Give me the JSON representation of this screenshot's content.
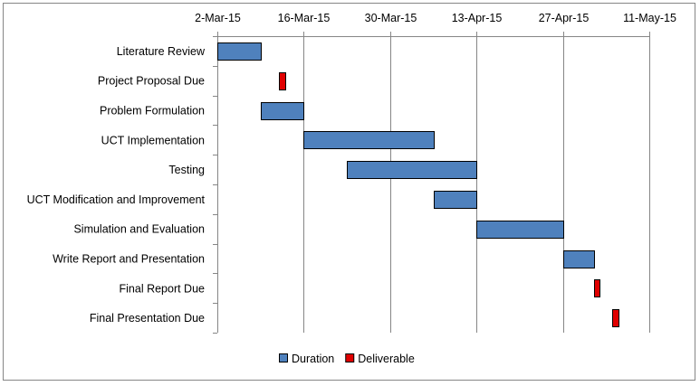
{
  "chart_data": {
    "type": "bar",
    "orientation": "horizontal",
    "title": "",
    "x_axis_position": "top",
    "grid": true,
    "xlim": [
      "2015-03-02",
      "2015-05-11"
    ],
    "x_ticks": [
      {
        "date": "2015-03-02",
        "label": "2-Mar-15"
      },
      {
        "date": "2015-03-16",
        "label": "16-Mar-15"
      },
      {
        "date": "2015-03-30",
        "label": "30-Mar-15"
      },
      {
        "date": "2015-04-13",
        "label": "13-Apr-15"
      },
      {
        "date": "2015-04-27",
        "label": "27-Apr-15"
      },
      {
        "date": "2015-05-11",
        "label": "11-May-15"
      }
    ],
    "categories": [
      "Literature Review",
      "Project Proposal Due",
      "Problem Formulation",
      "UCT Implementation",
      "Testing",
      "UCT Modification and Improvement",
      "Simulation and Evaluation",
      "Write Report and Presentation",
      "Final Report Due",
      "Final Presentation Due"
    ],
    "tasks": [
      {
        "name": "Literature Review",
        "start": "2015-03-02",
        "end": "2015-03-09",
        "series": "Duration"
      },
      {
        "name": "Project Proposal Due",
        "start": "2015-03-12",
        "end": "2015-03-13",
        "series": "Deliverable"
      },
      {
        "name": "Problem Formulation",
        "start": "2015-03-09",
        "end": "2015-03-16",
        "series": "Duration"
      },
      {
        "name": "UCT Implementation",
        "start": "2015-03-16",
        "end": "2015-04-06",
        "series": "Duration"
      },
      {
        "name": "Testing",
        "start": "2015-03-23",
        "end": "2015-04-13",
        "series": "Duration"
      },
      {
        "name": "UCT Modification and Improvement",
        "start": "2015-04-06",
        "end": "2015-04-13",
        "series": "Duration"
      },
      {
        "name": "Simulation and Evaluation",
        "start": "2015-04-13",
        "end": "2015-04-27",
        "series": "Duration"
      },
      {
        "name": "Write Report and Presentation",
        "start": "2015-04-27",
        "end": "2015-05-02",
        "series": "Duration"
      },
      {
        "name": "Final Report Due",
        "start": "2015-05-02",
        "end": "2015-05-03",
        "series": "Deliverable"
      },
      {
        "name": "Final Presentation Due",
        "start": "2015-05-05",
        "end": "2015-05-06",
        "series": "Deliverable"
      }
    ],
    "series": [
      {
        "name": "Duration",
        "color": "#4f81bd"
      },
      {
        "name": "Deliverable",
        "color": "#e00000"
      }
    ],
    "legend": {
      "placement": "bottom"
    },
    "colors": {
      "grid": "#868686",
      "frame": "#868686",
      "bar_border": "#000000"
    }
  }
}
